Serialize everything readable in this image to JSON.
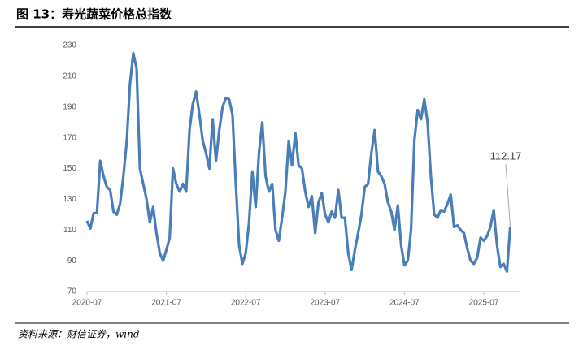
{
  "chart_data": {
    "type": "line",
    "title": "图 13：寿光蔬菜价格总指数",
    "source": "资料来源：财信证券，wind",
    "categories": [
      "2020-07",
      null,
      null,
      null,
      null,
      null,
      null,
      null,
      null,
      null,
      null,
      null,
      null,
      null,
      null,
      null,
      null,
      null,
      null,
      null,
      null,
      null,
      null,
      null,
      "2021-07",
      null,
      null,
      null,
      null,
      null,
      null,
      null,
      null,
      null,
      null,
      null,
      null,
      null,
      null,
      null,
      null,
      null,
      null,
      null,
      null,
      null,
      null,
      null,
      "2022-07",
      null,
      null,
      null,
      null,
      null,
      null,
      null,
      null,
      null,
      null,
      null,
      null,
      null,
      null,
      null,
      null,
      null,
      null,
      null,
      null,
      null,
      null,
      null,
      "2023-07",
      null,
      null,
      null,
      null,
      null,
      null,
      null,
      null,
      null,
      null,
      null,
      null,
      null,
      null,
      null,
      null,
      null,
      null,
      null,
      null,
      null,
      null,
      null,
      "2024-07",
      null,
      null,
      null,
      null,
      null,
      null,
      null,
      null,
      null,
      null,
      null,
      null,
      null,
      null,
      null,
      null,
      null,
      null,
      null,
      null,
      null,
      null,
      null,
      "2025-07",
      null,
      null,
      null,
      null,
      null,
      null,
      null,
      null
    ],
    "series": [
      {
        "color": "#4a7ebb",
        "values": [
          116,
          111,
          121,
          121,
          155,
          145,
          138,
          136,
          122,
          120,
          127,
          145,
          167,
          205,
          225,
          215,
          150,
          140,
          130,
          115,
          125,
          108,
          95,
          90,
          97,
          105,
          150,
          140,
          135,
          140,
          135,
          175,
          192,
          200,
          185,
          168,
          160,
          150,
          182,
          155,
          175,
          190,
          196,
          195,
          185,
          140,
          100,
          88,
          95,
          115,
          148,
          125,
          160,
          180,
          145,
          135,
          140,
          110,
          103,
          118,
          135,
          168,
          152,
          173,
          152,
          150,
          135,
          125,
          132,
          108,
          128,
          134,
          120,
          115,
          122,
          118,
          136,
          118,
          118,
          95,
          84,
          97,
          108,
          120,
          138,
          140,
          160,
          175,
          148,
          145,
          140,
          128,
          122,
          110,
          126,
          100,
          87,
          90,
          110,
          168,
          188,
          182,
          195,
          180,
          145,
          120,
          118,
          123,
          122,
          127,
          133,
          112,
          113,
          110,
          108,
          98,
          90,
          88,
          92,
          105,
          103,
          106,
          112,
          123,
          100,
          86,
          88,
          83,
          112.17
        ]
      }
    ],
    "ylim": [
      70,
      230
    ],
    "yticks": [
      70,
      90,
      110,
      130,
      150,
      170,
      190,
      210,
      230
    ],
    "grid": false
  }
}
